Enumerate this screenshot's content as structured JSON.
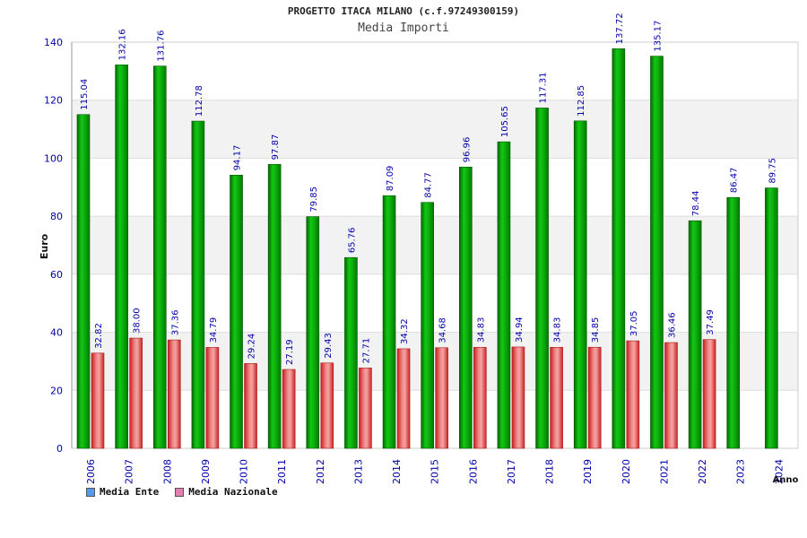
{
  "chart_data": {
    "type": "bar",
    "title": "PROGETTO ITACA MILANO (c.f.97249300159)",
    "subtitle": "Media Importi",
    "xlabel": "Anno",
    "ylabel": "Euro",
    "ylim": [
      0,
      140
    ],
    "yticks": [
      "0",
      "20",
      "40",
      "60",
      "80",
      "100",
      "120",
      "140"
    ],
    "grid": true,
    "legend_position": "bottom-left",
    "categories": [
      "2006",
      "2007",
      "2008",
      "2009",
      "2010",
      "2011",
      "2012",
      "2013",
      "2014",
      "2015",
      "2016",
      "2017",
      "2018",
      "2019",
      "2020",
      "2021",
      "2022",
      "2023",
      "2024"
    ],
    "series": [
      {
        "name": "Media Ente",
        "color": "#00a000",
        "legend_color": "#5599ee",
        "values": [
          115.04,
          132.16,
          131.76,
          112.78,
          94.17,
          97.87,
          79.85,
          65.76,
          87.09,
          84.77,
          96.96,
          105.65,
          117.31,
          112.85,
          137.72,
          135.17,
          78.44,
          86.47,
          89.75
        ],
        "labels": [
          "115.04",
          "132.16",
          "131.76",
          "112.78",
          "94.17",
          "97.87",
          "79.85",
          "65.76",
          "87.09",
          "84.77",
          "96.96",
          "105.65",
          "117.31",
          "112.85",
          "137.72",
          "135.17",
          "78.44",
          "86.47",
          "89.75"
        ]
      },
      {
        "name": "Media Nazionale",
        "color": "#e03a3a",
        "legend_color": "#e080b0",
        "values": [
          32.82,
          38.0,
          37.36,
          34.79,
          29.24,
          27.19,
          29.43,
          27.71,
          34.32,
          34.68,
          34.83,
          34.94,
          34.83,
          34.85,
          37.05,
          36.46,
          37.49,
          null,
          null
        ],
        "labels": [
          "32.82",
          "38.00",
          "37.36",
          "34.79",
          "29.24",
          "27.19",
          "29.43",
          "27.71",
          "34.32",
          "34.68",
          "34.83",
          "34.94",
          "34.83",
          "34.85",
          "37.05",
          "36.46",
          "37.49",
          null,
          null
        ]
      }
    ]
  }
}
